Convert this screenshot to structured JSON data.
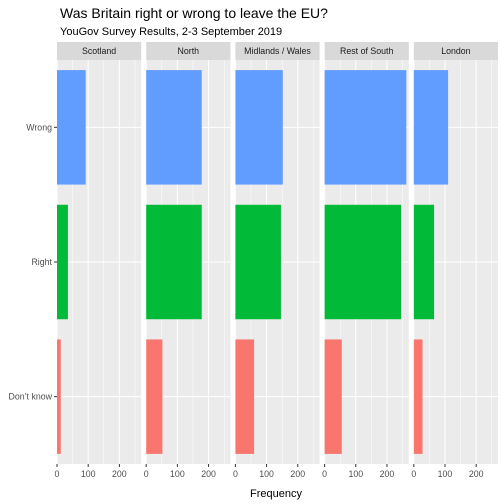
{
  "chart_data": {
    "type": "bar",
    "orientation": "horizontal",
    "title": "Was Britain right or wrong to leave the EU?",
    "subtitle": "YouGov Survey Results, 2-3 September 2019",
    "xlabel": "Frequency",
    "ylabel": "",
    "xlim": [
      0,
      270
    ],
    "x_ticks": [
      0,
      100,
      200
    ],
    "categories": [
      "Wrong",
      "Right",
      "Don't know"
    ],
    "category_labels": [
      "Wrong",
      "Right",
      "Don’t know"
    ],
    "category_colors": [
      "#619CFF",
      "#00BA38",
      "#F8766D"
    ],
    "facets": [
      {
        "name": "Scotland",
        "values": [
          92,
          35,
          12
        ]
      },
      {
        "name": "North",
        "values": [
          178,
          178,
          52
        ]
      },
      {
        "name": "Midlands / Wales",
        "values": [
          152,
          146,
          60
        ]
      },
      {
        "name": "Rest of South",
        "values": [
          262,
          245,
          55
        ]
      },
      {
        "name": "London",
        "values": [
          110,
          65,
          28
        ]
      }
    ],
    "grid": true,
    "legend": "none",
    "panel_background": "#EBEBEB",
    "strip_background": "#D9D9D9",
    "gridline_color": "#FFFFFF"
  }
}
